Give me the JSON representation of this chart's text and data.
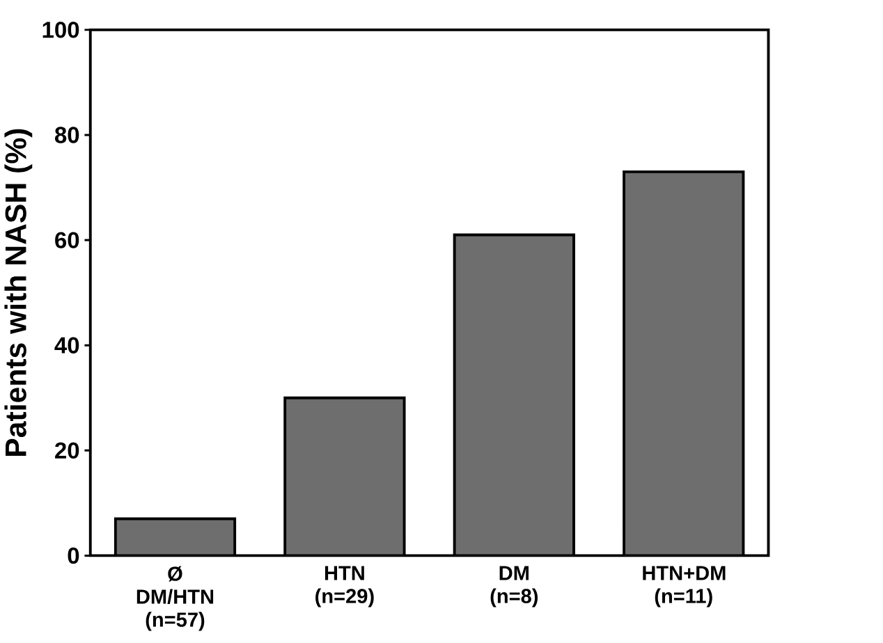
{
  "chart_data": {
    "type": "bar",
    "ylabel": "Patients with NASH (%)",
    "categories": [
      "Ø DM/HTN (n=57)",
      "HTN (n=29)",
      "DM (n=8)",
      "HTN+DM (n=11)"
    ],
    "values": [
      7,
      30,
      61,
      73
    ],
    "color": "#6e6e6e",
    "ylim": [
      0,
      100
    ],
    "yticks": [
      0,
      20,
      40,
      60,
      80,
      100
    ],
    "grid": false
  }
}
